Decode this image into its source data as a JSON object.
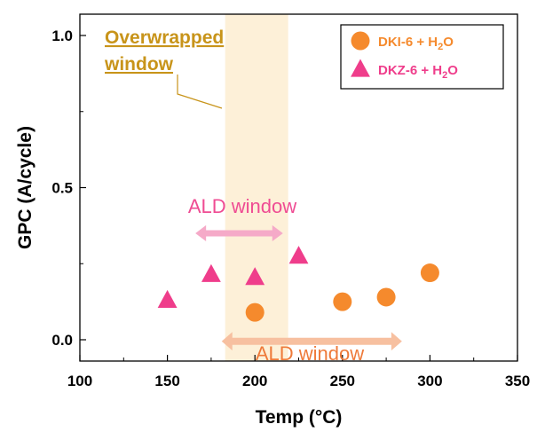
{
  "chart_data": {
    "type": "scatter",
    "xlabel": "Temp (°C)",
    "ylabel": "GPC (A/cycle)",
    "xlim": [
      100,
      350
    ],
    "ylim": [
      -0.07,
      1.07
    ],
    "xticks": [
      100,
      150,
      200,
      250,
      300,
      350
    ],
    "yticks": [
      0.0,
      0.5,
      1.0
    ],
    "xtick_labels": [
      "100",
      "150",
      "200",
      "250",
      "300",
      "350"
    ],
    "ytick_labels": [
      "0.0",
      "0.5",
      "1.0"
    ],
    "grid": false,
    "legend_position": "top-right",
    "series": [
      {
        "name_main": "DKI-6 + H",
        "name_sub": "2",
        "name_tail": "O",
        "marker": "circle",
        "color": "#f58a2d",
        "x": [
          200,
          250,
          275,
          300
        ],
        "y": [
          0.09,
          0.125,
          0.14,
          0.22
        ]
      },
      {
        "name_main": "DKZ-6 + H",
        "name_sub": "2",
        "name_tail": "O",
        "marker": "triangle",
        "color": "#ef3d8b",
        "x": [
          150,
          175,
          200,
          225
        ],
        "y": [
          0.13,
          0.215,
          0.205,
          0.275
        ]
      }
    ],
    "annotations": {
      "overwrapped_band": {
        "x_range": [
          183,
          219
        ],
        "color": "#fdf0d8",
        "label_line1": "Overwrapped",
        "label_line2": "window",
        "label_color": "#c8941a"
      },
      "ald_window_dkz": {
        "text": "ALD window",
        "x_range": [
          166,
          216
        ],
        "y": 0.35,
        "color": "#f5aac8",
        "text_color": "#ef4c93"
      },
      "ald_window_dki": {
        "text": "ALD window",
        "x_range": [
          181,
          284
        ],
        "y": -0.005,
        "color": "#f7c0a0",
        "text_color": "#ee7a3a"
      }
    }
  }
}
